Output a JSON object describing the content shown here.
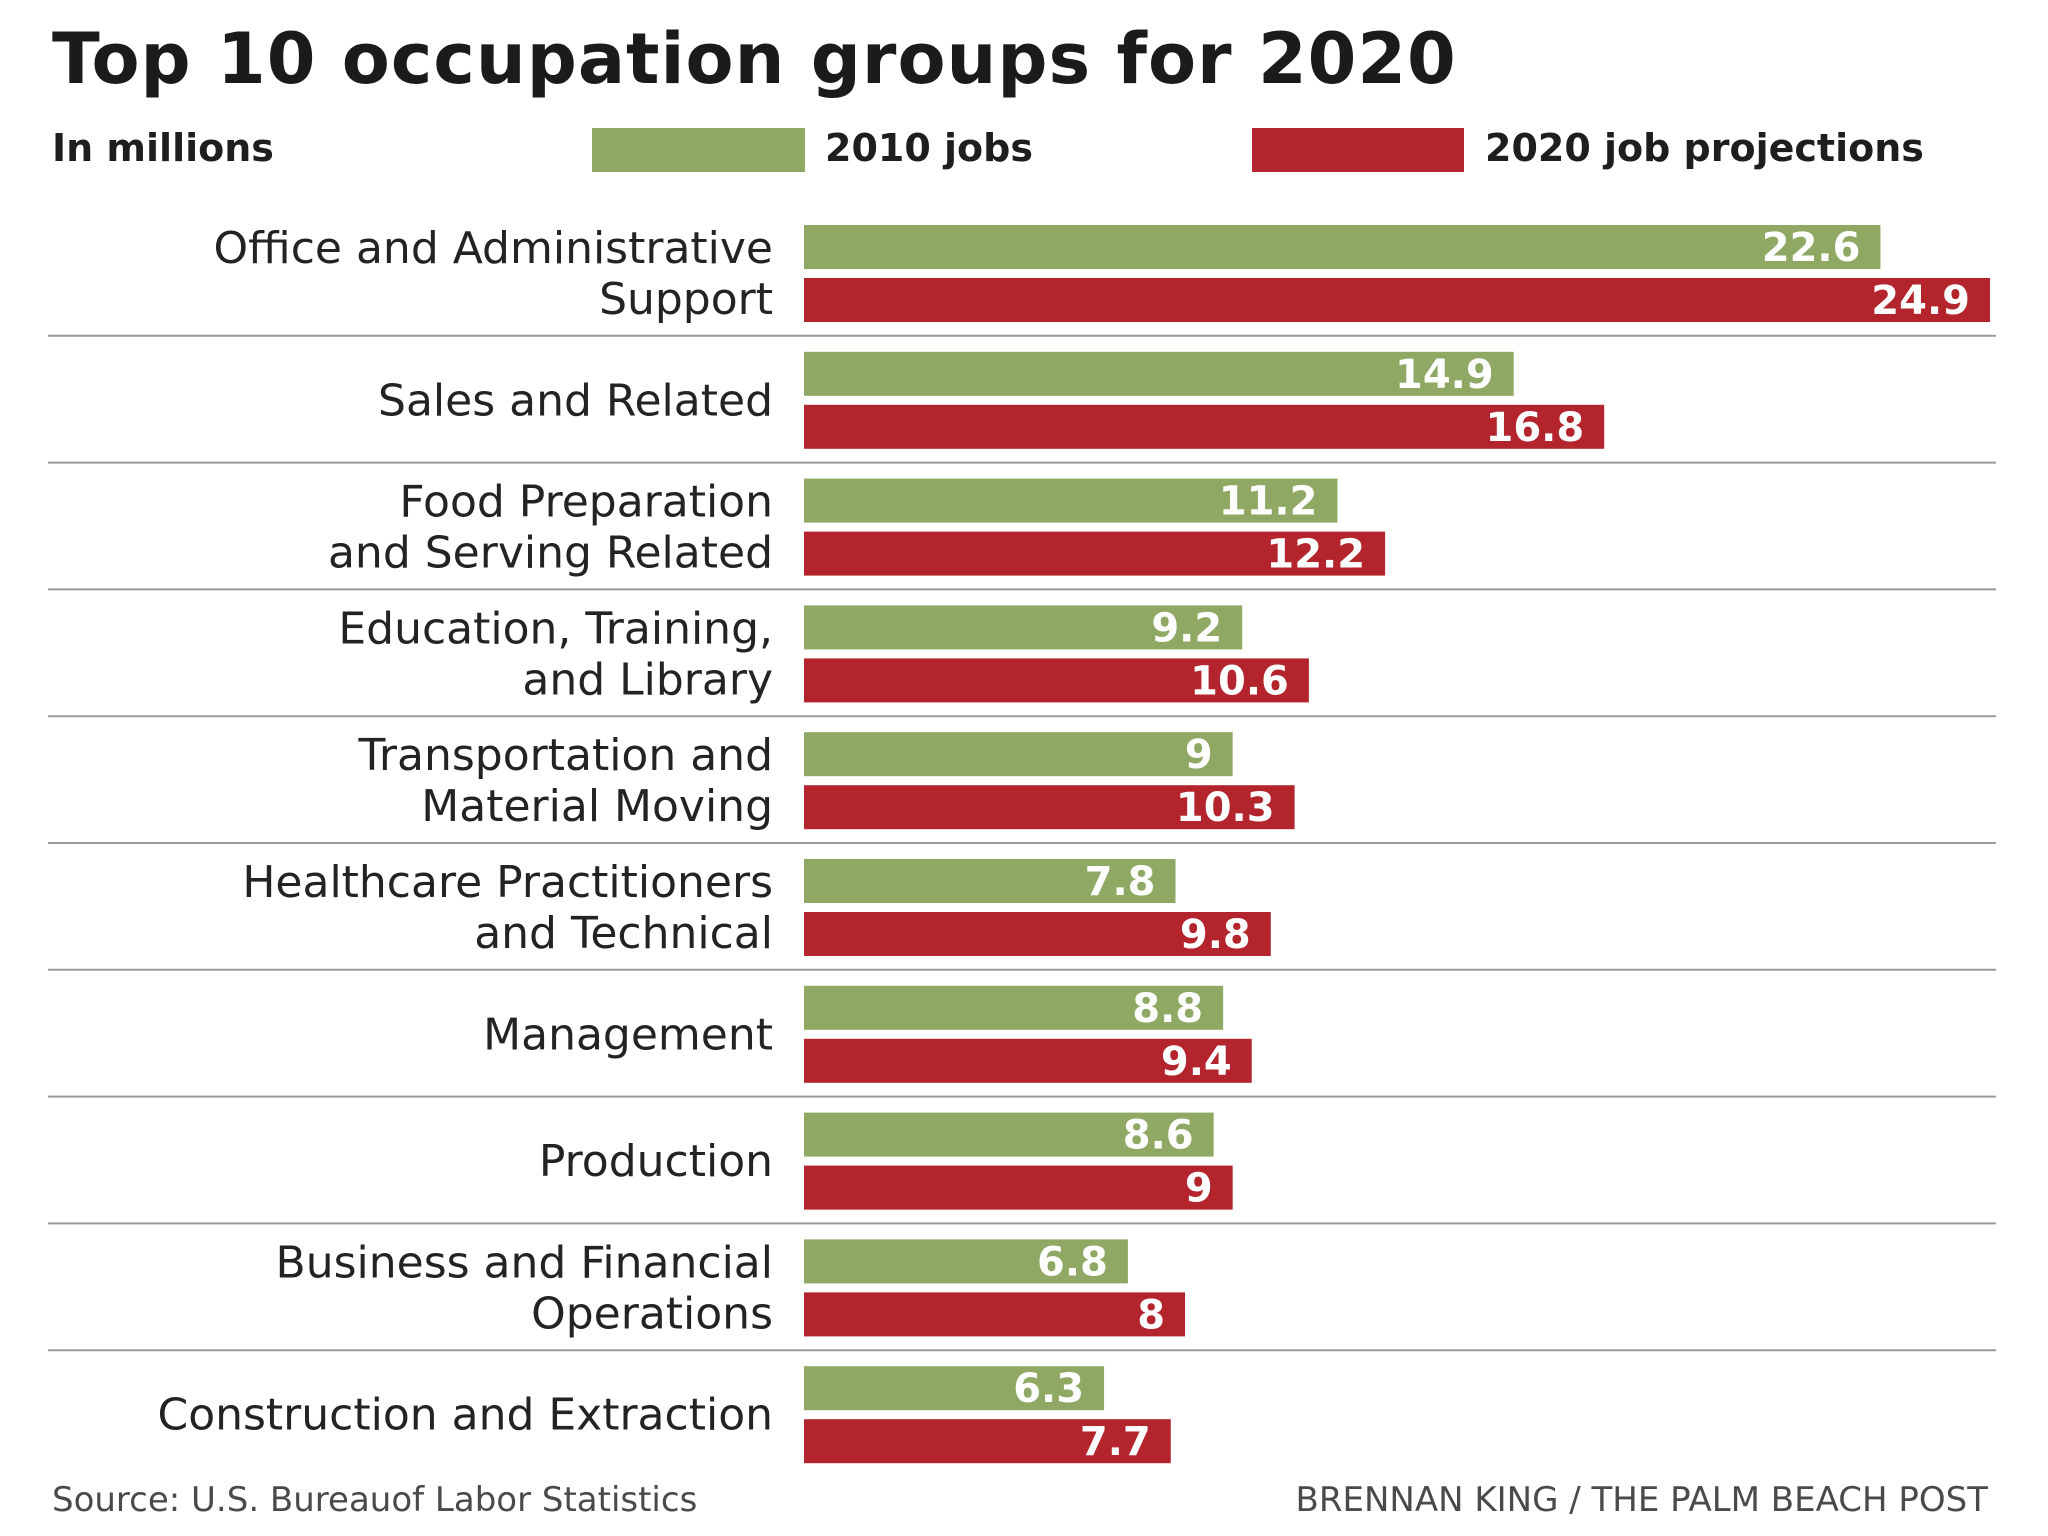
{
  "chart_data": {
    "type": "bar",
    "orientation": "horizontal",
    "title": "Top 10 occupation groups for 2020",
    "units_label": "In millions",
    "categories": [
      [
        "Office and Administrative",
        "Support"
      ],
      [
        "Sales and Related"
      ],
      [
        "Food Preparation",
        "and Serving Related"
      ],
      [
        "Education, Training,",
        "and Library"
      ],
      [
        "Transportation and",
        "Material Moving"
      ],
      [
        "Healthcare Practitioners",
        "and Technical"
      ],
      [
        "Management"
      ],
      [
        "Production"
      ],
      [
        "Business and Financial",
        "Operations"
      ],
      [
        "Construction and Extraction"
      ]
    ],
    "series": [
      {
        "name": "2010 jobs",
        "color": "#8fa964",
        "values": [
          22.6,
          14.9,
          11.2,
          9.2,
          9,
          7.8,
          8.8,
          8.6,
          6.8,
          6.3
        ]
      },
      {
        "name": "2020 job projections",
        "color": "#b3242c",
        "values": [
          24.9,
          16.8,
          12.2,
          10.6,
          10.3,
          9.8,
          9.4,
          9,
          8,
          7.7
        ]
      }
    ],
    "xlim": [
      0,
      24.9
    ],
    "xlabel": "",
    "ylabel": "",
    "grid": false,
    "legend_position": "top",
    "source": "Source: U.S. Bureauof Labor Statistics",
    "credit": "BRENNAN KING / THE PALM BEACH POST"
  }
}
